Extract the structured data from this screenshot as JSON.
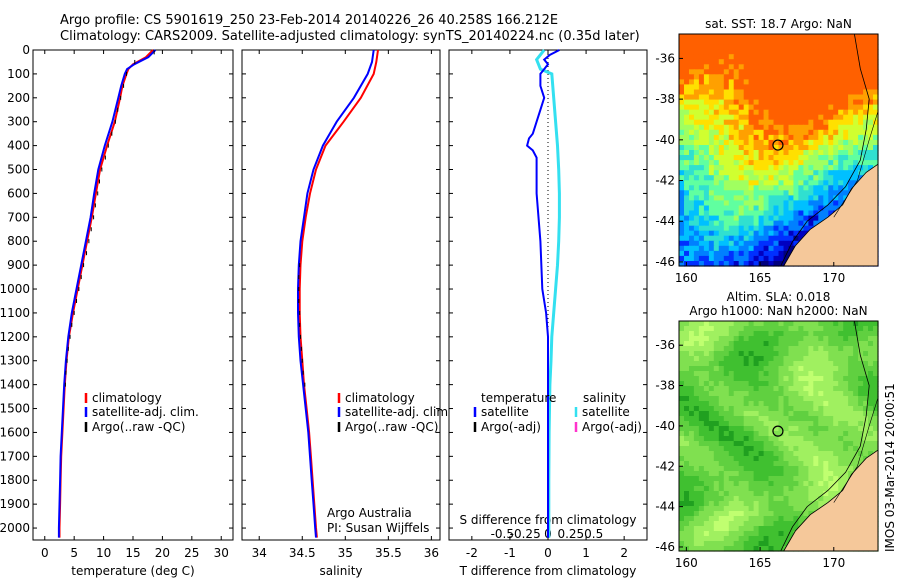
{
  "header": {
    "line1": "Argo profile: CS 5901619_250 23-Feb-2014 20140226_26 40.258S 166.212E",
    "line2": "Climatology: CARS2009. Satellite-adjusted climatology: synTS_20140224.nc (0.35d later)"
  },
  "colors": {
    "climatology": "#ff0000",
    "satellite_clim": "#0000ff",
    "argo": "#000000",
    "t_satellite": "#0000ff",
    "s_satellite": "#33e0f0",
    "s_argo": "#ff33cc",
    "land": "#f5c89a"
  },
  "side_label": "IMOS 03-Mar-2014 20:00:51",
  "chart_data": [
    {
      "type": "line",
      "name": "temperature-profile",
      "xlabel": "temperature (deg C)",
      "ylabel": "",
      "xlim": [
        -2,
        32
      ],
      "ylim": [
        2050,
        0
      ],
      "xticks": [
        0,
        5,
        10,
        15,
        20,
        25,
        30
      ],
      "yticks": [
        0,
        100,
        200,
        300,
        400,
        500,
        600,
        700,
        800,
        900,
        1000,
        1100,
        1200,
        1300,
        1400,
        1500,
        1600,
        1700,
        1800,
        1900,
        2000
      ],
      "legend": [
        "climatology",
        "satellite-adj. clim.",
        "Argo(..raw -QC)"
      ],
      "legend_position": "lower-center",
      "series": [
        {
          "name": "climatology",
          "y": [
            0,
            30,
            60,
            80,
            100,
            150,
            200,
            300,
            400,
            500,
            600,
            700,
            800,
            900,
            1000,
            1100,
            1200,
            1300,
            1400,
            1500,
            1600,
            1700,
            1800,
            1900,
            2000,
            2040
          ],
          "x": [
            18.4,
            17.2,
            15.0,
            14.2,
            13.9,
            13.2,
            12.8,
            11.9,
            10.6,
            9.4,
            8.7,
            8.0,
            7.2,
            6.4,
            5.6,
            4.8,
            4.1,
            3.7,
            3.4,
            3.2,
            3.0,
            2.8,
            2.7,
            2.6,
            2.5,
            2.5
          ]
        },
        {
          "name": "satellite-adj. clim.",
          "y": [
            0,
            30,
            60,
            80,
            100,
            150,
            200,
            300,
            400,
            500,
            600,
            700,
            800,
            900,
            1000,
            1100,
            1200,
            1300,
            1400,
            1500,
            1600,
            1700,
            1800,
            1900,
            2000,
            2040
          ],
          "x": [
            18.8,
            17.6,
            15.2,
            14.0,
            13.6,
            13.0,
            12.5,
            11.5,
            10.2,
            9.1,
            8.4,
            7.8,
            7.0,
            6.2,
            5.4,
            4.6,
            4.0,
            3.6,
            3.3,
            3.1,
            2.9,
            2.7,
            2.6,
            2.5,
            2.4,
            2.4
          ]
        },
        {
          "name": "Argo(..raw -QC)",
          "y": [
            10,
            50,
            100,
            150,
            200,
            250,
            300,
            350,
            400,
            450,
            500,
            550,
            600,
            650,
            700,
            750,
            800,
            850,
            900,
            950,
            1000,
            1050,
            1100,
            1150,
            1200,
            1250,
            1300,
            1350,
            1400
          ],
          "x": [
            18.6,
            15.3,
            13.9,
            13.4,
            12.9,
            12.4,
            12.0,
            11.4,
            10.8,
            10.3,
            9.7,
            9.3,
            9.0,
            8.6,
            8.3,
            7.9,
            7.5,
            7.1,
            6.6,
            6.2,
            5.8,
            5.4,
            5.0,
            4.6,
            4.3,
            4.0,
            3.8,
            3.6,
            3.5
          ]
        }
      ]
    },
    {
      "type": "line",
      "name": "salinity-profile",
      "xlabel": "salinity",
      "xlim": [
        33.8,
        36.1
      ],
      "ylim": [
        2050,
        0
      ],
      "xticks": [
        34,
        34.5,
        35,
        35.5,
        36
      ],
      "xticklabels": [
        "34",
        "34.5",
        "35",
        "35.5",
        "36"
      ],
      "legend": [
        "climatology",
        "satellite-adj. clim.",
        "Argo(..raw -QC)"
      ],
      "legend_position": "lower-right",
      "annotations": [
        "Argo Australia",
        "PI: Susan Wijffels"
      ],
      "series": [
        {
          "name": "climatology",
          "y": [
            0,
            50,
            100,
            200,
            300,
            400,
            500,
            600,
            700,
            800,
            900,
            1000,
            1100,
            1200,
            1300,
            1400,
            1500,
            1600,
            1700,
            1800,
            1900,
            2000,
            2040
          ],
          "x": [
            35.38,
            35.36,
            35.33,
            35.18,
            34.98,
            34.77,
            34.66,
            34.59,
            34.54,
            34.5,
            34.48,
            34.47,
            34.47,
            34.48,
            34.5,
            34.52,
            34.55,
            34.58,
            34.6,
            34.62,
            34.64,
            34.66,
            34.67
          ]
        },
        {
          "name": "satellite-adj. clim.",
          "y": [
            0,
            50,
            100,
            200,
            300,
            400,
            500,
            600,
            700,
            800,
            900,
            1000,
            1100,
            1200,
            1300,
            1400,
            1500,
            1600,
            1700,
            1800,
            1900,
            2000,
            2040
          ],
          "x": [
            35.33,
            35.31,
            35.26,
            35.1,
            34.9,
            34.74,
            34.63,
            34.56,
            34.52,
            34.48,
            34.46,
            34.45,
            34.45,
            34.46,
            34.48,
            34.51,
            34.54,
            34.57,
            34.59,
            34.61,
            34.63,
            34.65,
            34.66
          ]
        },
        {
          "name": "Argo(..raw -QC)",
          "y": [
            900,
            950,
            1000,
            1050,
            1100,
            1150,
            1200,
            1250,
            1300,
            1350,
            1400
          ],
          "x": [
            34.47,
            34.46,
            34.46,
            34.46,
            34.47,
            34.47,
            34.48,
            34.49,
            34.5,
            34.51,
            34.53
          ]
        }
      ]
    },
    {
      "type": "line",
      "name": "difference-profile",
      "xlabel": "T difference from climatology",
      "xlabel_top": "S difference from climatology",
      "xlim": [
        -2.6,
        2.6
      ],
      "ylim": [
        2050,
        0
      ],
      "xticks": [
        -2,
        -1,
        0,
        1,
        2
      ],
      "xticks_top": [
        "-0.5",
        "-0.25",
        "0",
        "0.25",
        "0.5"
      ],
      "zero_line": "dotted",
      "legend": [
        "temperature",
        "satellite",
        "Argo(-adj)",
        "salinity",
        "satellite",
        "Argo(-adj)"
      ],
      "legend_position": "lower-center",
      "series": [
        {
          "name": "T satellite",
          "y": [
            0,
            20,
            40,
            60,
            80,
            100,
            150,
            200,
            250,
            300,
            350,
            370,
            400,
            420,
            450,
            500,
            600,
            800,
            1000,
            1100,
            1200,
            1400,
            1600,
            1800,
            2000,
            2040
          ],
          "x": [
            0.3,
            0.05,
            -0.1,
            0.0,
            -0.1,
            -0.2,
            -0.2,
            -0.1,
            -0.2,
            -0.3,
            -0.4,
            -0.5,
            -0.55,
            -0.4,
            -0.3,
            -0.3,
            -0.3,
            -0.2,
            -0.15,
            -0.05,
            0.0,
            0.0,
            0.0,
            0.0,
            0.0,
            0.0
          ]
        },
        {
          "name": "S satellite",
          "y": [
            0,
            20,
            40,
            60,
            80,
            100,
            200,
            300,
            400,
            500,
            600,
            700,
            800,
            900,
            1000,
            1100,
            1200,
            1300,
            1400,
            1500,
            1600,
            1800,
            2000,
            2040
          ],
          "x": [
            -0.1,
            -0.2,
            -0.3,
            -0.25,
            -0.2,
            0.1,
            0.15,
            0.2,
            0.25,
            0.28,
            0.3,
            0.3,
            0.28,
            0.25,
            0.2,
            0.15,
            0.1,
            0.08,
            0.05,
            0.04,
            0.03,
            0.02,
            0.02,
            0.02
          ]
        }
      ]
    },
    {
      "type": "heatmap",
      "name": "sst-map",
      "title": "sat. SST: 18.7 Argo: NaN",
      "xlim": [
        159.5,
        173
      ],
      "ylim": [
        -46.2,
        -34.8
      ],
      "xticks": [
        160,
        165,
        170
      ],
      "yticks": [
        -36,
        -38,
        -40,
        -42,
        -44,
        -46
      ],
      "marker": {
        "lon": 166.212,
        "lat": -40.258
      }
    },
    {
      "type": "heatmap",
      "name": "sla-map",
      "title": "Altim. SLA: 0.018",
      "subtitle": "Argo h1000: NaN h2000: NaN",
      "xlim": [
        159.5,
        173
      ],
      "ylim": [
        -46.2,
        -34.8
      ],
      "xticks": [
        160,
        165,
        170
      ],
      "yticks": [
        -36,
        -38,
        -40,
        -42,
        -44,
        -46
      ],
      "marker": {
        "lon": 166.212,
        "lat": -40.258
      }
    }
  ]
}
